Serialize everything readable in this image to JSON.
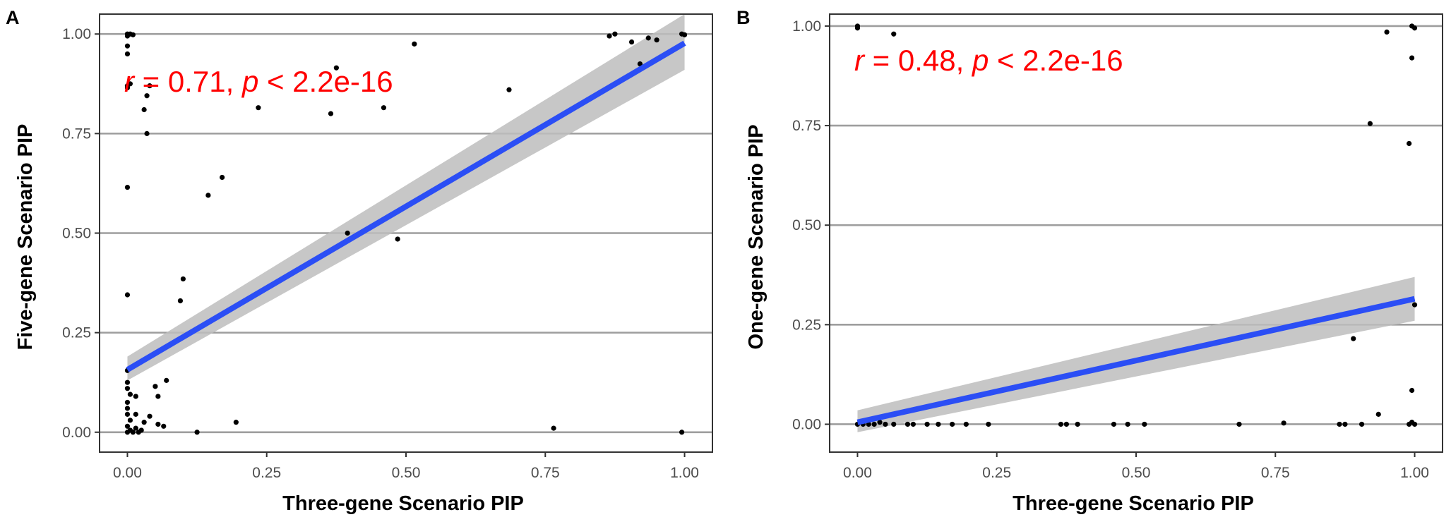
{
  "chart_data": [
    {
      "type": "scatter",
      "panel": "A",
      "xlabel": "Three-gene Scenario PIP",
      "ylabel": "Five-gene Scenario PIP",
      "xlim": [
        -0.05,
        1.05
      ],
      "ylim": [
        -0.05,
        1.05
      ],
      "x_ticks": [
        "0.00",
        "0.25",
        "0.50",
        "0.75",
        "1.00"
      ],
      "y_ticks": [
        "0.00",
        "0.25",
        "0.50",
        "0.75",
        "1.00"
      ],
      "grid": "horizontal major",
      "annotation": {
        "r_symbol": "r",
        "r_text": " = 0.71, ",
        "p_symbol": "p",
        "p_text": " < 2.2e-16"
      },
      "fit_line": {
        "x": [
          0,
          1
        ],
        "y": [
          0.157,
          0.977
        ],
        "band_lower": [
          0.13,
          0.91
        ],
        "band_upper": [
          0.19,
          1.05
        ]
      },
      "points": [
        {
          "x": 0.0,
          "y": 1.0
        },
        {
          "x": 0.005,
          "y": 1.0
        },
        {
          "x": 0.0,
          "y": 0.995
        },
        {
          "x": 0.01,
          "y": 0.998
        },
        {
          "x": 0.0,
          "y": 0.97
        },
        {
          "x": 0.0,
          "y": 0.95
        },
        {
          "x": 0.0,
          "y": 0.87
        },
        {
          "x": 0.0,
          "y": 0.865
        },
        {
          "x": 0.005,
          "y": 0.875
        },
        {
          "x": 0.04,
          "y": 0.87
        },
        {
          "x": 0.035,
          "y": 0.845
        },
        {
          "x": 0.03,
          "y": 0.81
        },
        {
          "x": 0.035,
          "y": 0.75
        },
        {
          "x": 0.0,
          "y": 0.615
        },
        {
          "x": 0.0,
          "y": 0.345
        },
        {
          "x": 0.0,
          "y": 0.155
        },
        {
          "x": 0.0,
          "y": 0.125
        },
        {
          "x": 0.0,
          "y": 0.11
        },
        {
          "x": 0.005,
          "y": 0.095
        },
        {
          "x": 0.0,
          "y": 0.075
        },
        {
          "x": 0.0,
          "y": 0.06
        },
        {
          "x": 0.0,
          "y": 0.045
        },
        {
          "x": 0.005,
          "y": 0.03
        },
        {
          "x": 0.0,
          "y": 0.015
        },
        {
          "x": 0.0,
          "y": 0.0
        },
        {
          "x": 0.005,
          "y": 0.005
        },
        {
          "x": 0.01,
          "y": 0.0
        },
        {
          "x": 0.015,
          "y": 0.01
        },
        {
          "x": 0.02,
          "y": 0.0
        },
        {
          "x": 0.025,
          "y": 0.005
        },
        {
          "x": 0.015,
          "y": 0.045
        },
        {
          "x": 0.015,
          "y": 0.09
        },
        {
          "x": 0.03,
          "y": 0.025
        },
        {
          "x": 0.04,
          "y": 0.04
        },
        {
          "x": 0.05,
          "y": 0.115
        },
        {
          "x": 0.055,
          "y": 0.09
        },
        {
          "x": 0.055,
          "y": 0.02
        },
        {
          "x": 0.065,
          "y": 0.015
        },
        {
          "x": 0.07,
          "y": 0.13
        },
        {
          "x": 0.095,
          "y": 0.33
        },
        {
          "x": 0.1,
          "y": 0.385
        },
        {
          "x": 0.125,
          "y": 0.0
        },
        {
          "x": 0.145,
          "y": 0.595
        },
        {
          "x": 0.17,
          "y": 0.64
        },
        {
          "x": 0.195,
          "y": 0.025
        },
        {
          "x": 0.235,
          "y": 0.815
        },
        {
          "x": 0.365,
          "y": 0.8
        },
        {
          "x": 0.375,
          "y": 0.915
        },
        {
          "x": 0.395,
          "y": 0.5
        },
        {
          "x": 0.46,
          "y": 0.815
        },
        {
          "x": 0.485,
          "y": 0.485
        },
        {
          "x": 0.515,
          "y": 0.975
        },
        {
          "x": 0.685,
          "y": 0.86
        },
        {
          "x": 0.765,
          "y": 0.01
        },
        {
          "x": 0.865,
          "y": 0.995
        },
        {
          "x": 0.875,
          "y": 1.0
        },
        {
          "x": 0.905,
          "y": 0.98
        },
        {
          "x": 0.92,
          "y": 0.925
        },
        {
          "x": 0.935,
          "y": 0.99
        },
        {
          "x": 0.95,
          "y": 0.985
        },
        {
          "x": 0.995,
          "y": 1.0
        },
        {
          "x": 1.0,
          "y": 0.998
        },
        {
          "x": 0.995,
          "y": 0.0
        }
      ]
    },
    {
      "type": "scatter",
      "panel": "B",
      "xlabel": "Three-gene Scenario PIP",
      "ylabel": "One-gene Scenario PIP",
      "xlim": [
        -0.05,
        1.05
      ],
      "ylim": [
        -0.07,
        1.03
      ],
      "x_ticks": [
        "0.00",
        "0.25",
        "0.50",
        "0.75",
        "1.00"
      ],
      "y_ticks": [
        "0.00",
        "0.25",
        "0.50",
        "0.75",
        "1.00"
      ],
      "grid": "horizontal major",
      "annotation": {
        "r_symbol": "r",
        "r_text": " = 0.48, ",
        "p_symbol": "p",
        "p_text": " < 2.2e-16"
      },
      "fit_line": {
        "x": [
          0,
          1
        ],
        "y": [
          0.005,
          0.315
        ],
        "band_lower": [
          -0.02,
          0.26
        ],
        "band_upper": [
          0.035,
          0.37
        ]
      },
      "points": [
        {
          "x": 0.0,
          "y": 1.0
        },
        {
          "x": 0.0,
          "y": 0.995
        },
        {
          "x": 0.065,
          "y": 0.98
        },
        {
          "x": 0.95,
          "y": 0.985
        },
        {
          "x": 0.995,
          "y": 1.0
        },
        {
          "x": 1.0,
          "y": 0.995
        },
        {
          "x": 0.995,
          "y": 0.92
        },
        {
          "x": 0.92,
          "y": 0.755
        },
        {
          "x": 0.99,
          "y": 0.705
        },
        {
          "x": 1.0,
          "y": 0.3
        },
        {
          "x": 0.89,
          "y": 0.215
        },
        {
          "x": 0.995,
          "y": 0.085
        },
        {
          "x": 0.935,
          "y": 0.025
        },
        {
          "x": 0.0,
          "y": 0.0
        },
        {
          "x": 0.005,
          "y": 0.005
        },
        {
          "x": 0.01,
          "y": 0.0
        },
        {
          "x": 0.02,
          "y": 0.0
        },
        {
          "x": 0.03,
          "y": 0.0
        },
        {
          "x": 0.04,
          "y": 0.005
        },
        {
          "x": 0.05,
          "y": 0.0
        },
        {
          "x": 0.065,
          "y": 0.0
        },
        {
          "x": 0.09,
          "y": 0.0
        },
        {
          "x": 0.1,
          "y": 0.0
        },
        {
          "x": 0.125,
          "y": 0.0
        },
        {
          "x": 0.145,
          "y": 0.0
        },
        {
          "x": 0.17,
          "y": 0.0
        },
        {
          "x": 0.195,
          "y": 0.0
        },
        {
          "x": 0.235,
          "y": 0.0
        },
        {
          "x": 0.365,
          "y": 0.0
        },
        {
          "x": 0.375,
          "y": 0.0
        },
        {
          "x": 0.395,
          "y": 0.0
        },
        {
          "x": 0.46,
          "y": 0.0
        },
        {
          "x": 0.485,
          "y": 0.0
        },
        {
          "x": 0.515,
          "y": 0.0
        },
        {
          "x": 0.685,
          "y": 0.0
        },
        {
          "x": 0.765,
          "y": 0.003
        },
        {
          "x": 0.865,
          "y": 0.0
        },
        {
          "x": 0.875,
          "y": 0.0
        },
        {
          "x": 0.905,
          "y": 0.0
        },
        {
          "x": 0.99,
          "y": 0.0
        },
        {
          "x": 0.995,
          "y": 0.005
        },
        {
          "x": 1.0,
          "y": 0.0
        }
      ]
    }
  ],
  "colors": {
    "fit_line": "#2B4EF5",
    "confidence_band": "#BDBDBD",
    "points": "#000000",
    "grid": "#9E9E9E",
    "annotation": "#FF0000",
    "frame": "#333333"
  }
}
